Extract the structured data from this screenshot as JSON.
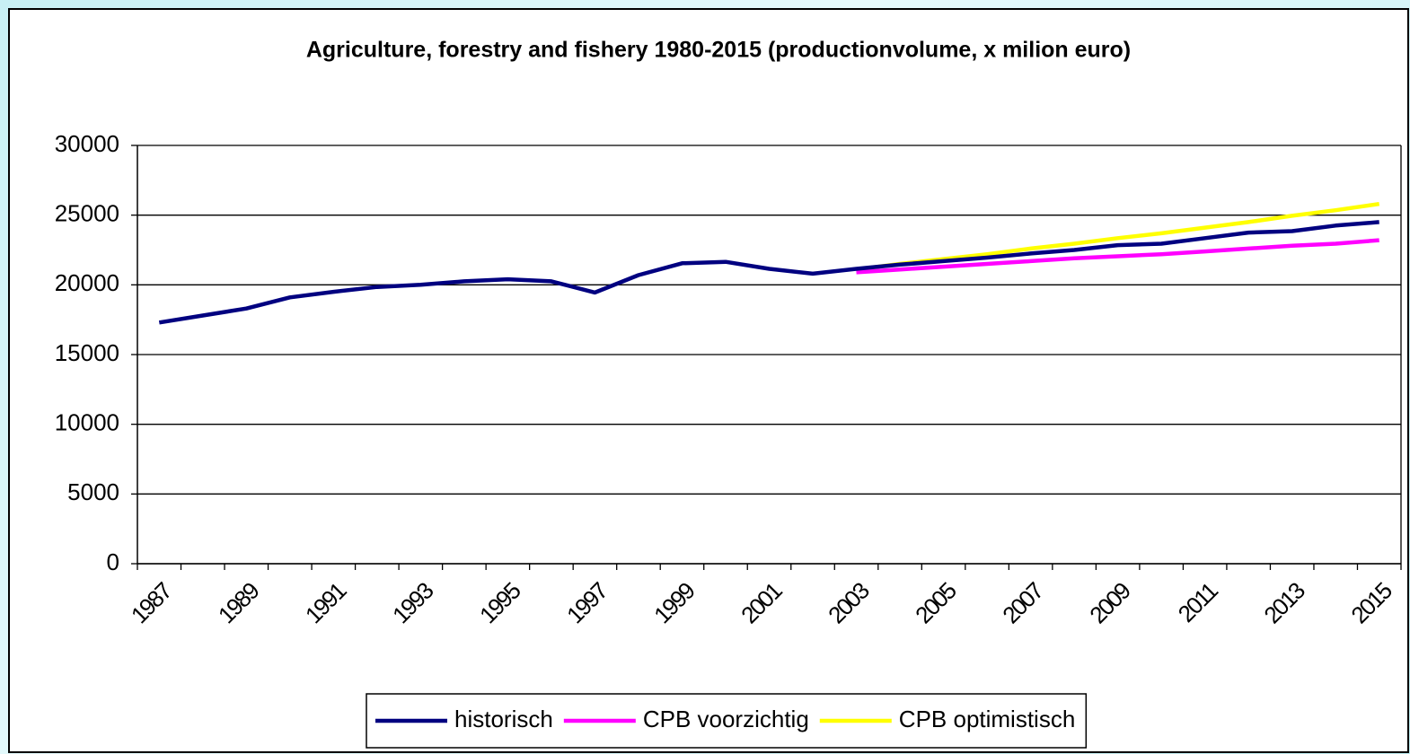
{
  "chart_data": {
    "type": "line",
    "title": "Agriculture, forestry and fishery 1980-2015 (productionvolume, x milion euro)",
    "categories": [
      "1987",
      null,
      "1989",
      null,
      "1991",
      null,
      "1993",
      null,
      "1995",
      null,
      "1997",
      null,
      "1999",
      null,
      "2001",
      null,
      "2003",
      null,
      "2005",
      null,
      "2007",
      null,
      "2009",
      null,
      "2011",
      null,
      "2013",
      null,
      "2015"
    ],
    "series": [
      {
        "name": "historisch",
        "color": "#000080",
        "values": [
          17300,
          17800,
          18300,
          19100,
          19500,
          19850,
          20000,
          20250,
          20400,
          20250,
          19450,
          20700,
          21550,
          21650,
          21150,
          20800,
          21150,
          21450,
          21700,
          21950,
          22250,
          22500,
          22850,
          22950,
          23350,
          23750,
          23850,
          24250,
          24500
        ]
      },
      {
        "name": "CPB voorzichtig",
        "color": "#ff00ff",
        "values": [
          null,
          null,
          null,
          null,
          null,
          null,
          null,
          null,
          null,
          null,
          null,
          null,
          null,
          null,
          null,
          null,
          20900,
          21100,
          21300,
          21500,
          21700,
          21900,
          22050,
          22200,
          22400,
          22600,
          22800,
          22950,
          23200
        ]
      },
      {
        "name": "CPB optimistisch",
        "color": "#ffff00",
        "values": [
          null,
          null,
          null,
          null,
          null,
          null,
          null,
          null,
          null,
          null,
          null,
          null,
          null,
          null,
          null,
          null,
          21100,
          21500,
          21850,
          22200,
          22600,
          22950,
          23350,
          23700,
          24100,
          24500,
          24950,
          25350,
          25800
        ]
      }
    ],
    "ylim": [
      0,
      30000
    ],
    "yticks": [
      0,
      5000,
      10000,
      15000,
      20000,
      25000,
      30000
    ],
    "grid": true
  }
}
